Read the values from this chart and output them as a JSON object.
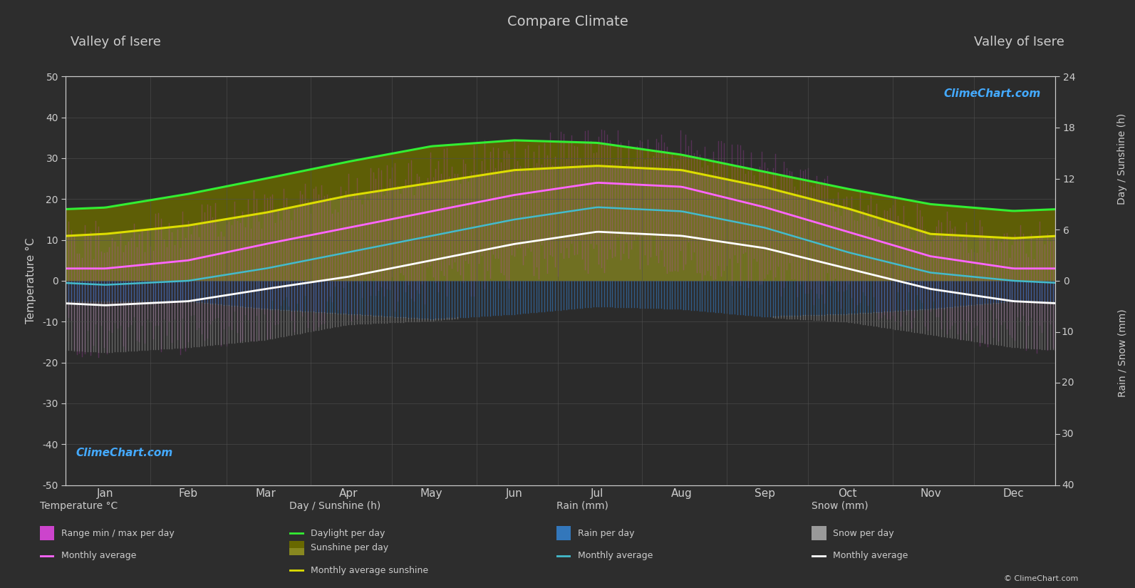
{
  "title": "Compare Climate",
  "location_left": "Valley of Isere",
  "location_right": "Valley of Isere",
  "bg_color": "#2d2d2d",
  "plot_bg": "#2b2b2b",
  "grid_color": "#505050",
  "text_color": "#cccccc",
  "months": [
    "Jan",
    "Feb",
    "Mar",
    "Apr",
    "May",
    "Jun",
    "Jul",
    "Aug",
    "Sep",
    "Oct",
    "Nov",
    "Dec"
  ],
  "month_days": [
    15.5,
    46,
    74.5,
    105,
    135.5,
    166,
    196.5,
    227.5,
    258,
    288.5,
    319,
    349.5
  ],
  "daylight_hours": [
    8.6,
    10.2,
    12.0,
    14.0,
    15.8,
    16.5,
    16.2,
    14.8,
    12.8,
    10.8,
    9.0,
    8.2
  ],
  "sunshine_hours": [
    5.5,
    6.5,
    8.0,
    10.0,
    11.5,
    13.0,
    13.5,
    13.0,
    11.0,
    8.5,
    5.5,
    5.0
  ],
  "temp_max_monthly": [
    3,
    5,
    9,
    13,
    17,
    21,
    24,
    23,
    18,
    12,
    6,
    3
  ],
  "temp_min_monthly": [
    -6,
    -5,
    -2,
    1,
    5,
    9,
    12,
    11,
    8,
    3,
    -2,
    -5
  ],
  "temp_abs_max": [
    10,
    13,
    18,
    22,
    27,
    31,
    33,
    32,
    27,
    20,
    13,
    10
  ],
  "temp_abs_min": [
    -14,
    -13,
    -10,
    -5,
    -1,
    3,
    7,
    6,
    2,
    -3,
    -9,
    -13
  ],
  "cyan_avg_monthly": [
    -1,
    0,
    3,
    7,
    11,
    15,
    18,
    17,
    13,
    7,
    2,
    0
  ],
  "rain_mm": [
    4.0,
    4.0,
    5.5,
    6.5,
    7.5,
    6.5,
    5.0,
    5.5,
    7.0,
    6.5,
    5.5,
    4.0
  ],
  "snow_mm": [
    10,
    9,
    6,
    2,
    0.3,
    0,
    0,
    0,
    0.1,
    1.5,
    5,
    9
  ],
  "daylight_color": "#33ee33",
  "sunshine_fill_top_color": "#686800",
  "sunshine_fill_bot_color": "#888820",
  "sunshine_line_color": "#dddd00",
  "temp_range_color": "#cc44cc",
  "temp_max_line_color": "#ff66ff",
  "temp_min_line_color": "#ffffff",
  "cyan_line_color": "#44bbcc",
  "rain_color": "#3377bb",
  "snow_color": "#999999",
  "logo_color": "#44aaff"
}
